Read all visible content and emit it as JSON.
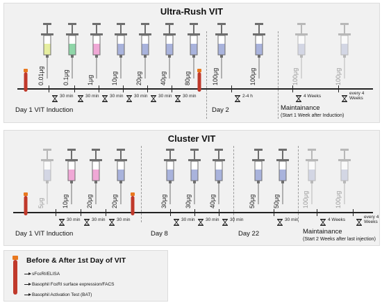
{
  "colors": {
    "yellow": "#e6eea0",
    "green": "#8fd6a8",
    "pink": "#f0a8d6",
    "blue": "#a9b3dc",
    "faint": "#d3d6e4",
    "tube_red": "#c0392b",
    "tube_cap": "#e8781e"
  },
  "panel1": {
    "title": "Ultra-Rush VIT",
    "doses": [
      "0.01μg",
      "0.1μg",
      "1μg",
      "10μg",
      "20μg",
      "40μg",
      "80μg",
      "100μg",
      "100μg",
      "100μg",
      "100μg"
    ],
    "intervals": [
      "30 min",
      "30 min",
      "30 min",
      "30 min",
      "30 min",
      "30 min",
      "2-4 h",
      "4 Weeks",
      "every 4 Weeks"
    ],
    "days": [
      "Day 1 VIT Induction",
      "Day 2",
      "Maintainance"
    ],
    "note": "(Start 1 Week after Induction)"
  },
  "panel2": {
    "title": "Cluster VIT",
    "doses": [
      "5μg",
      "10μg",
      "20μg",
      "20μg",
      "30μg",
      "30μg",
      "40μg",
      "50μg",
      "50μg",
      "100μg",
      "100μg"
    ],
    "intervals": [
      "30 min",
      "30 min",
      "30 min",
      "30 min",
      "30 min",
      "30 min",
      "30 min",
      "4 Weeks",
      "every 4 Weeks"
    ],
    "days": [
      "Day 1 VIT Induction",
      "Day 8",
      "Day 22",
      "Maintainance"
    ],
    "note": "(Start 2 Weeks after last injection)"
  },
  "legend": {
    "title": "Before & After 1st Day of VIT",
    "items": [
      "sFcεRI/ELISA",
      "Basophil FcεRI surface expression/FACS",
      "Basophil Activation Test (BAT)"
    ]
  }
}
